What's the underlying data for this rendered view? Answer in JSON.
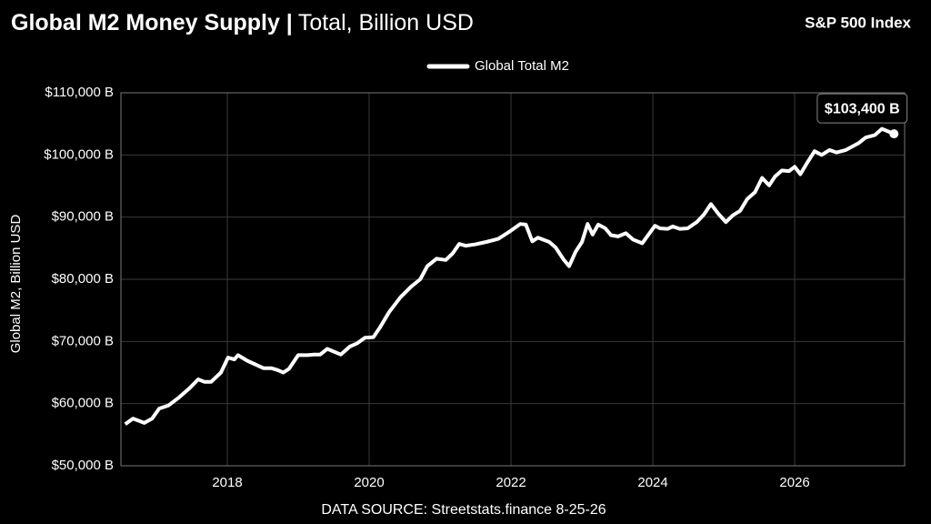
{
  "chart_data": {
    "type": "line",
    "title": "Global M2 Money Supply |",
    "subtitle": "Total, Billion USD",
    "corner_label": "S&P 500 Index",
    "y_label": "Global M2, Billion USD",
    "source": "DATA SOURCE: Streetstats.finance 8-25-26",
    "annotation": "$103,400 B",
    "grid": true,
    "legend": "top",
    "xlim": [
      2016.5,
      2027.55
    ],
    "xticks": [
      2018,
      2020,
      2022,
      2024,
      2026
    ],
    "ylim": [
      50000,
      110000
    ],
    "yticks": [
      {
        "value": 50000,
        "label": "$50,000 B"
      },
      {
        "value": 60000,
        "label": "$60,000 B"
      },
      {
        "value": 70000,
        "label": "$70,000 B"
      },
      {
        "value": 80000,
        "label": "$80,000 B"
      },
      {
        "value": 90000,
        "label": "$90,000 B"
      },
      {
        "value": 100000,
        "label": "$100,000 B"
      },
      {
        "value": 110000,
        "label": "$110,000 B"
      }
    ],
    "x": [
      2016.56,
      2016.67,
      2016.83,
      2016.94,
      2017.04,
      2017.17,
      2017.32,
      2017.46,
      2017.59,
      2017.68,
      2017.77,
      2017.91,
      2018.01,
      2018.1,
      2018.15,
      2018.28,
      2018.51,
      2018.62,
      2018.71,
      2018.79,
      2018.87,
      2019.0,
      2019.13,
      2019.22,
      2019.31,
      2019.41,
      2019.6,
      2019.73,
      2019.83,
      2019.94,
      2020.06,
      2020.15,
      2020.28,
      2020.44,
      2020.59,
      2020.72,
      2020.82,
      2020.95,
      2021.08,
      2021.18,
      2021.27,
      2021.36,
      2021.49,
      2021.65,
      2021.82,
      2021.97,
      2022.13,
      2022.21,
      2022.3,
      2022.38,
      2022.54,
      2022.63,
      2022.74,
      2022.82,
      2022.91,
      2023.0,
      2023.08,
      2023.15,
      2023.23,
      2023.33,
      2023.41,
      2023.51,
      2023.62,
      2023.72,
      2023.85,
      2023.92,
      2024.03,
      2024.1,
      2024.21,
      2024.28,
      2024.38,
      2024.49,
      2024.62,
      2024.72,
      2024.82,
      2024.92,
      2025.03,
      2025.13,
      2025.23,
      2025.33,
      2025.44,
      2025.54,
      2025.64,
      2025.72,
      2025.82,
      2025.92,
      2026.0,
      2026.08,
      2026.18,
      2026.28,
      2026.38,
      2026.49,
      2026.59,
      2026.72,
      2026.9,
      2027.0,
      2027.13,
      2027.23,
      2027.4
    ],
    "series": [
      {
        "name": "Global Total M2",
        "color": "#ffffff",
        "values": [
          56700,
          57600,
          56900,
          57600,
          59200,
          59700,
          61000,
          62400,
          63900,
          63500,
          63500,
          65000,
          67400,
          67100,
          67800,
          66900,
          65700,
          65700,
          65400,
          65000,
          65600,
          67800,
          67800,
          67900,
          67900,
          68800,
          67900,
          69200,
          69700,
          70600,
          70700,
          72200,
          74700,
          77100,
          78800,
          80000,
          82100,
          83300,
          83100,
          84200,
          85700,
          85400,
          85600,
          86000,
          86500,
          87600,
          88900,
          88800,
          86100,
          86700,
          86000,
          85100,
          83200,
          82100,
          84400,
          86000,
          88900,
          87200,
          88800,
          88200,
          87100,
          86900,
          87400,
          86400,
          85800,
          86900,
          88600,
          88200,
          88100,
          88500,
          88100,
          88200,
          89200,
          90400,
          92100,
          90600,
          89200,
          90300,
          91000,
          92900,
          94000,
          96300,
          95100,
          96500,
          97500,
          97400,
          98100,
          96900,
          98800,
          100600,
          100000,
          100800,
          100400,
          100800,
          101900,
          102800,
          103200,
          104200,
          103400
        ]
      }
    ]
  }
}
